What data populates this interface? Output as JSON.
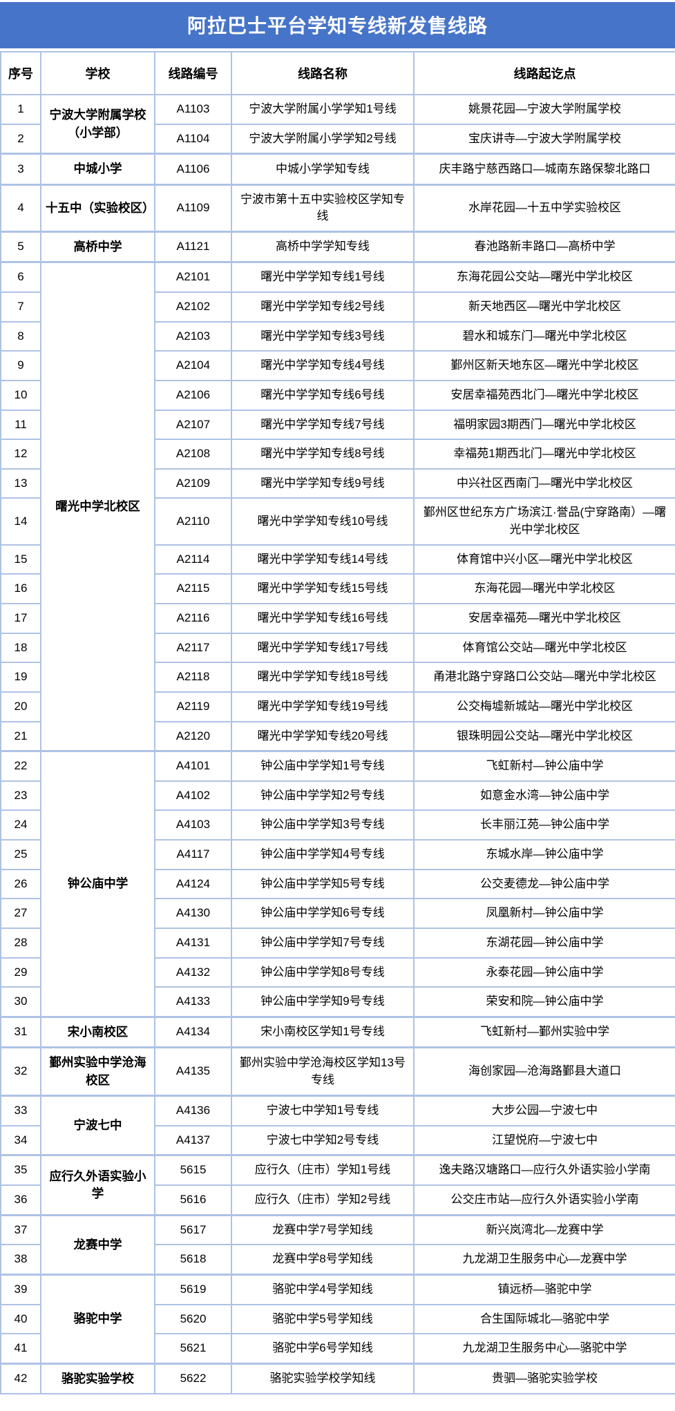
{
  "title": "阿拉巴士平台学知专线新发售线路",
  "colors": {
    "title_background": "#4674c8",
    "title_text": "#ffffff",
    "table_border": "#aec2e4",
    "cell_background": "#ffffff",
    "cell_text": "#000000"
  },
  "table": {
    "headers": [
      "序号",
      "学校",
      "线路编号",
      "线路名称",
      "线路起讫点"
    ],
    "groups": [
      {
        "school": "宁波大学附属学校（小学部）",
        "rows": [
          {
            "seq": "1",
            "code": "A1103",
            "name": "宁波大学附属小学学知1号线",
            "endpoints": "姚景花园—宁波大学附属学校"
          },
          {
            "seq": "2",
            "code": "A1104",
            "name": "宁波大学附属小学学知2号线",
            "endpoints": "宝庆讲寺—宁波大学附属学校"
          }
        ]
      },
      {
        "school": "中城小学",
        "rows": [
          {
            "seq": "3",
            "code": "A1106",
            "name": "中城小学学知专线",
            "endpoints": "庆丰路宁慈西路口—城南东路保黎北路口"
          }
        ]
      },
      {
        "school": "十五中（实验校区）",
        "rows": [
          {
            "seq": "4",
            "code": "A1109",
            "name": "宁波市第十五中实验校区学知专线",
            "endpoints": "水岸花园—十五中学实验校区"
          }
        ]
      },
      {
        "school": "高桥中学",
        "rows": [
          {
            "seq": "5",
            "code": "A1121",
            "name": "高桥中学学知专线",
            "endpoints": "春池路新丰路口—高桥中学"
          }
        ]
      },
      {
        "school": "曙光中学北校区",
        "rows": [
          {
            "seq": "6",
            "code": "A2101",
            "name": "曙光中学学知专线1号线",
            "endpoints": "东海花园公交站—曙光中学北校区"
          },
          {
            "seq": "7",
            "code": "A2102",
            "name": "曙光中学学知专线2号线",
            "endpoints": "新天地西区—曙光中学北校区"
          },
          {
            "seq": "8",
            "code": "A2103",
            "name": "曙光中学学知专线3号线",
            "endpoints": "碧水和城东门—曙光中学北校区"
          },
          {
            "seq": "9",
            "code": "A2104",
            "name": "曙光中学学知专线4号线",
            "endpoints": "鄞州区新天地东区—曙光中学北校区"
          },
          {
            "seq": "10",
            "code": "A2106",
            "name": "曙光中学学知专线6号线",
            "endpoints": "安居幸福苑西北门—曙光中学北校区"
          },
          {
            "seq": "11",
            "code": "A2107",
            "name": "曙光中学学知专线7号线",
            "endpoints": "福明家园3期西门—曙光中学北校区"
          },
          {
            "seq": "12",
            "code": "A2108",
            "name": "曙光中学学知专线8号线",
            "endpoints": "幸福苑1期西北门—曙光中学北校区"
          },
          {
            "seq": "13",
            "code": "A2109",
            "name": "曙光中学学知专线9号线",
            "endpoints": "中兴社区西南门—曙光中学北校区"
          },
          {
            "seq": "14",
            "code": "A2110",
            "name": "曙光中学学知专线10号线",
            "endpoints": "鄞州区世纪东方广场滨江·誉品(宁穿路南）—曙光中学北校区"
          },
          {
            "seq": "15",
            "code": "A2114",
            "name": "曙光中学学知专线14号线",
            "endpoints": "体育馆中兴小区—曙光中学北校区"
          },
          {
            "seq": "16",
            "code": "A2115",
            "name": "曙光中学学知专线15号线",
            "endpoints": "东海花园—曙光中学北校区"
          },
          {
            "seq": "17",
            "code": "A2116",
            "name": "曙光中学学知专线16号线",
            "endpoints": "安居幸福苑—曙光中学北校区"
          },
          {
            "seq": "18",
            "code": "A2117",
            "name": "曙光中学学知专线17号线",
            "endpoints": "体育馆公交站—曙光中学北校区"
          },
          {
            "seq": "19",
            "code": "A2118",
            "name": "曙光中学学知专线18号线",
            "endpoints": "甬港北路宁穿路口公交站—曙光中学北校区"
          },
          {
            "seq": "20",
            "code": "A2119",
            "name": "曙光中学学知专线19号线",
            "endpoints": "公交梅墟新城站—曙光中学北校区"
          },
          {
            "seq": "21",
            "code": "A2120",
            "name": "曙光中学学知专线20号线",
            "endpoints": "银珠明园公交站—曙光中学北校区"
          }
        ]
      },
      {
        "school": "钟公庙中学",
        "rows": [
          {
            "seq": "22",
            "code": "A4101",
            "name": "钟公庙中学学知1号专线",
            "endpoints": "飞虹新村—钟公庙中学"
          },
          {
            "seq": "23",
            "code": "A4102",
            "name": "钟公庙中学学知2号专线",
            "endpoints": "如意金水湾—钟公庙中学"
          },
          {
            "seq": "24",
            "code": "A4103",
            "name": "钟公庙中学学知3号专线",
            "endpoints": "长丰丽江苑—钟公庙中学"
          },
          {
            "seq": "25",
            "code": "A4117",
            "name": "钟公庙中学学知4号专线",
            "endpoints": "东城水岸—钟公庙中学"
          },
          {
            "seq": "26",
            "code": "A4124",
            "name": "钟公庙中学学知5号专线",
            "endpoints": "公交麦德龙—钟公庙中学"
          },
          {
            "seq": "27",
            "code": "A4130",
            "name": "钟公庙中学学知6号专线",
            "endpoints": "凤凰新村—钟公庙中学"
          },
          {
            "seq": "28",
            "code": "A4131",
            "name": "钟公庙中学学知7号专线",
            "endpoints": "东湖花园—钟公庙中学"
          },
          {
            "seq": "29",
            "code": "A4132",
            "name": "钟公庙中学学知8号专线",
            "endpoints": "永泰花园—钟公庙中学"
          },
          {
            "seq": "30",
            "code": "A4133",
            "name": "钟公庙中学学知9号专线",
            "endpoints": "荣安和院—钟公庙中学"
          }
        ]
      },
      {
        "school": "宋小南校区",
        "rows": [
          {
            "seq": "31",
            "code": "A4134",
            "name": "宋小南校区学知1号专线",
            "endpoints": "飞虹新村—鄞州实验中学"
          }
        ]
      },
      {
        "school": "鄞州实验中学沧海校区",
        "rows": [
          {
            "seq": "32",
            "code": "A4135",
            "name": "鄞州实验中学沧海校区学知13号专线",
            "endpoints": "海创家园—沧海路鄞县大道口"
          }
        ]
      },
      {
        "school": "宁波七中",
        "rows": [
          {
            "seq": "33",
            "code": "A4136",
            "name": "宁波七中学知1号专线",
            "endpoints": "大步公园—宁波七中"
          },
          {
            "seq": "34",
            "code": "A4137",
            "name": "宁波七中学知2号专线",
            "endpoints": "江望悦府—宁波七中"
          }
        ]
      },
      {
        "school": "应行久外语实验小学",
        "rows": [
          {
            "seq": "35",
            "code": "5615",
            "name": "应行久（庄市）学知1号线",
            "endpoints": "逸夫路汉塘路口—应行久外语实验小学南"
          },
          {
            "seq": "36",
            "code": "5616",
            "name": "应行久（庄市）学知2号线",
            "endpoints": "公交庄市站—应行久外语实验小学南"
          }
        ]
      },
      {
        "school": "龙赛中学",
        "rows": [
          {
            "seq": "37",
            "code": "5617",
            "name": "龙赛中学7号学知线",
            "endpoints": "新兴岚湾北—龙赛中学"
          },
          {
            "seq": "38",
            "code": "5618",
            "name": "龙赛中学8号学知线",
            "endpoints": "九龙湖卫生服务中心—龙赛中学"
          }
        ]
      },
      {
        "school": "骆驼中学",
        "rows": [
          {
            "seq": "39",
            "code": "5619",
            "name": "骆驼中学4号学知线",
            "endpoints": "镇远桥—骆驼中学"
          },
          {
            "seq": "40",
            "code": "5620",
            "name": "骆驼中学5号学知线",
            "endpoints": "合生国际城北—骆驼中学"
          },
          {
            "seq": "41",
            "code": "5621",
            "name": "骆驼中学6号学知线",
            "endpoints": "九龙湖卫生服务中心—骆驼中学"
          }
        ]
      },
      {
        "school": "骆驼实验学校",
        "rows": [
          {
            "seq": "42",
            "code": "5622",
            "name": "骆驼实验学校学知线",
            "endpoints": "贵驷—骆驼实验学校"
          }
        ]
      }
    ]
  }
}
